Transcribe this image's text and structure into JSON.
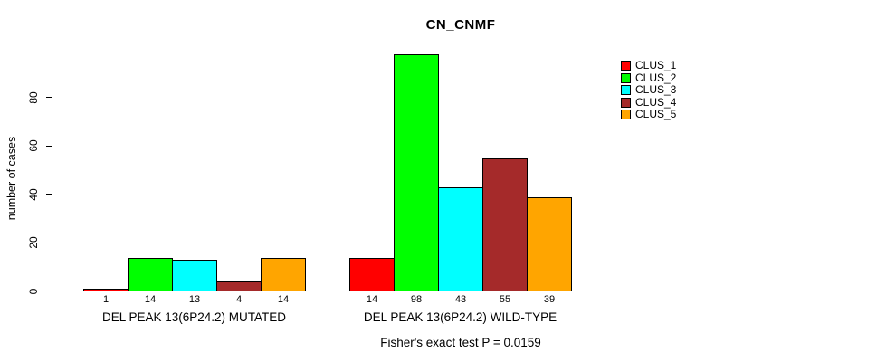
{
  "chart_data": {
    "type": "bar",
    "title": "CN_CNMF",
    "ylabel": "number of cases",
    "xlabel": "",
    "ylim": [
      0,
      80
    ],
    "yticks": [
      0,
      20,
      40,
      60,
      80
    ],
    "grid": false,
    "legend_position": "right",
    "series": [
      {
        "name": "CLUS_1",
        "color": "#FF0000"
      },
      {
        "name": "CLUS_2",
        "color": "#00FF00"
      },
      {
        "name": "CLUS_3",
        "color": "#00FFFF"
      },
      {
        "name": "CLUS_4",
        "color": "#A52A2A"
      },
      {
        "name": "CLUS_5",
        "color": "#FFA500"
      }
    ],
    "groups": [
      {
        "label": "DEL PEAK 13(6P24.2) MUTATED",
        "values": [
          1,
          14,
          13,
          4,
          14
        ]
      },
      {
        "label": "DEL PEAK 13(6P24.2) WILD-TYPE",
        "values": [
          14,
          98,
          43,
          55,
          39
        ]
      }
    ],
    "footnote": "Fisher's exact test P = 0.0159"
  }
}
